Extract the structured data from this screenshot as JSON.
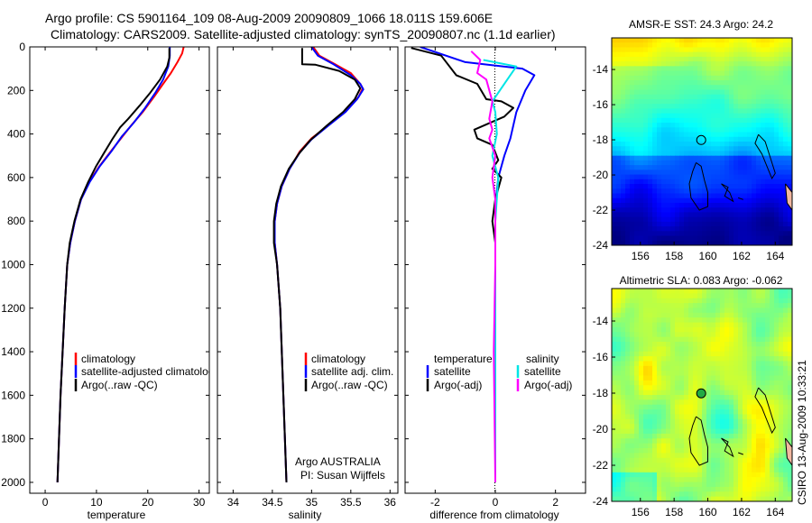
{
  "header": {
    "line1": "Argo profile: CS 5901164_109 08-Aug-2009 20090809_1066 18.011S 159.606E",
    "line2": "Climatology: CARS2009. Satellite-adjusted climatology: synTS_20090807.nc (1.1d earlier)"
  },
  "stamp": "CSIRO 13-Aug-2009 10:33:21",
  "colors": {
    "climatology": "#ff0000",
    "satellite": "#0000ff",
    "argo": "#000000",
    "sal_satellite": "#00e5e5",
    "sal_argo": "#ff00ff"
  },
  "chart_data": [
    {
      "type": "line",
      "id": "temperature",
      "xlabel": "temperature",
      "ylabel": "",
      "xlim": [
        -3,
        32
      ],
      "ylim": [
        2050,
        0
      ],
      "xticks": [
        0,
        10,
        20,
        30
      ],
      "yticks": [
        0,
        200,
        400,
        600,
        800,
        1000,
        1200,
        1400,
        1600,
        1800,
        2000
      ],
      "legend": {
        "entries": [
          "climatology",
          "satellite-adjusted climatology",
          "Argo(..raw -QC)"
        ],
        "placement": "lower-right"
      },
      "series": [
        {
          "name": "climatology",
          "color": "#ff0000",
          "points": [
            [
              27.0,
              0
            ],
            [
              26.7,
              30
            ],
            [
              25.8,
              70
            ],
            [
              24.5,
              120
            ],
            [
              23.0,
              170
            ],
            [
              21.2,
              230
            ],
            [
              19.0,
              300
            ],
            [
              16.8,
              360
            ],
            [
              14.8,
              420
            ],
            [
              12.8,
              480
            ],
            [
              10.5,
              550
            ],
            [
              8.6,
              620
            ],
            [
              7.0,
              700
            ],
            [
              5.8,
              800
            ],
            [
              4.9,
              900
            ],
            [
              4.3,
              1000
            ],
            [
              3.8,
              1200
            ],
            [
              3.4,
              1400
            ],
            [
              3.0,
              1600
            ],
            [
              2.7,
              1800
            ],
            [
              2.4,
              2000
            ]
          ]
        },
        {
          "name": "satellite-adjusted climatology",
          "color": "#0000ff",
          "points": [
            [
              24.3,
              0
            ],
            [
              24.3,
              40
            ],
            [
              24.0,
              90
            ],
            [
              23.0,
              150
            ],
            [
              21.5,
              210
            ],
            [
              19.5,
              280
            ],
            [
              17.2,
              350
            ],
            [
              15.0,
              410
            ],
            [
              12.9,
              480
            ],
            [
              10.6,
              550
            ],
            [
              8.7,
              620
            ],
            [
              7.0,
              700
            ],
            [
              5.8,
              800
            ],
            [
              4.9,
              900
            ],
            [
              4.3,
              1000
            ],
            [
              3.8,
              1200
            ],
            [
              3.4,
              1400
            ],
            [
              3.0,
              1600
            ],
            [
              2.7,
              1800
            ],
            [
              2.4,
              2000
            ]
          ]
        },
        {
          "name": "Argo(..raw -QC)",
          "color": "#000000",
          "points": [
            [
              24.2,
              5
            ],
            [
              24.2,
              50
            ],
            [
              23.8,
              90
            ],
            [
              22.4,
              150
            ],
            [
              20.5,
              210
            ],
            [
              18.4,
              270
            ],
            [
              16.2,
              330
            ],
            [
              14.6,
              370
            ],
            [
              13.2,
              420
            ],
            [
              11.4,
              490
            ],
            [
              9.9,
              550
            ],
            [
              8.4,
              620
            ],
            [
              6.9,
              700
            ],
            [
              5.7,
              800
            ],
            [
              4.8,
              900
            ],
            [
              4.3,
              1000
            ],
            [
              3.8,
              1200
            ],
            [
              3.4,
              1400
            ],
            [
              3.0,
              1600
            ],
            [
              2.7,
              1800
            ],
            [
              2.4,
              2000
            ]
          ]
        }
      ]
    },
    {
      "type": "line",
      "id": "salinity",
      "xlabel": "salinity",
      "ylabel": "",
      "xlim": [
        33.8,
        36.1
      ],
      "ylim": [
        2050,
        0
      ],
      "xticks": [
        34,
        34.5,
        35,
        35.5,
        36
      ],
      "xticklabels": [
        "34",
        "34.5",
        "35",
        "35.5",
        "36"
      ],
      "yticks": [
        0,
        200,
        400,
        600,
        800,
        1000,
        1200,
        1400,
        1600,
        1800,
        2000
      ],
      "legend": {
        "entries": [
          "climatology",
          "satellite adj. clim.",
          "Argo(..raw -QC)"
        ],
        "placement": "lower-right"
      },
      "annotation": [
        "Argo AUSTRALIA",
        "PI: Susan Wijffels"
      ],
      "series": [
        {
          "name": "climatology",
          "color": "#ff0000",
          "points": [
            [
              35.02,
              0
            ],
            [
              35.1,
              40
            ],
            [
              35.3,
              80
            ],
            [
              35.5,
              120
            ],
            [
              35.62,
              170
            ],
            [
              35.65,
              190
            ],
            [
              35.6,
              230
            ],
            [
              35.45,
              290
            ],
            [
              35.25,
              350
            ],
            [
              35.0,
              420
            ],
            [
              34.85,
              480
            ],
            [
              34.72,
              560
            ],
            [
              34.62,
              640
            ],
            [
              34.56,
              720
            ],
            [
              34.53,
              800
            ],
            [
              34.53,
              900
            ],
            [
              34.56,
              1000
            ],
            [
              34.6,
              1200
            ],
            [
              34.63,
              1500
            ],
            [
              34.66,
              1800
            ],
            [
              34.68,
              2000
            ]
          ]
        },
        {
          "name": "satellite adj. clim.",
          "color": "#0000ff",
          "points": [
            [
              35.0,
              0
            ],
            [
              35.08,
              40
            ],
            [
              35.28,
              80
            ],
            [
              35.5,
              130
            ],
            [
              35.62,
              170
            ],
            [
              35.66,
              195
            ],
            [
              35.58,
              240
            ],
            [
              35.43,
              300
            ],
            [
              35.22,
              360
            ],
            [
              35.0,
              425
            ],
            [
              34.85,
              485
            ],
            [
              34.72,
              560
            ],
            [
              34.62,
              640
            ],
            [
              34.56,
              720
            ],
            [
              34.53,
              800
            ],
            [
              34.53,
              900
            ],
            [
              34.56,
              1000
            ],
            [
              34.6,
              1200
            ],
            [
              34.63,
              1500
            ],
            [
              34.66,
              1800
            ],
            [
              34.68,
              2000
            ]
          ]
        },
        {
          "name": "Argo(..raw -QC)",
          "color": "#000000",
          "points": [
            [
              34.88,
              5
            ],
            [
              34.88,
              80
            ],
            [
              35.05,
              82
            ],
            [
              35.35,
              110
            ],
            [
              35.55,
              150
            ],
            [
              35.62,
              190
            ],
            [
              35.55,
              240
            ],
            [
              35.4,
              300
            ],
            [
              35.2,
              360
            ],
            [
              34.98,
              430
            ],
            [
              34.84,
              490
            ],
            [
              34.71,
              560
            ],
            [
              34.61,
              640
            ],
            [
              34.55,
              720
            ],
            [
              34.52,
              800
            ],
            [
              34.52,
              900
            ],
            [
              34.56,
              1000
            ],
            [
              34.6,
              1200
            ],
            [
              34.63,
              1500
            ],
            [
              34.66,
              1800
            ],
            [
              34.68,
              2000
            ]
          ]
        }
      ]
    },
    {
      "type": "line",
      "id": "difference",
      "xlabel": "difference from climatology",
      "ylabel": "",
      "xlim": [
        -3,
        3
      ],
      "ylim": [
        2050,
        0
      ],
      "xticks": [
        -2,
        0,
        2
      ],
      "yticks": [
        0,
        200,
        400,
        600,
        800,
        1000,
        1200,
        1400,
        1600,
        1800,
        2000
      ],
      "legend": {
        "headers": [
          "temperature",
          "salinity"
        ],
        "entries": [
          "satellite",
          "Argo(-adj)",
          "satellite",
          "Argo(-adj)"
        ],
        "placement": "lower-right"
      },
      "series": [
        {
          "name": "temperature satellite",
          "color": "#0000ff",
          "points": [
            [
              -2.5,
              0
            ],
            [
              -1.0,
              70
            ],
            [
              0.9,
              100
            ],
            [
              1.3,
              130
            ],
            [
              1.0,
              200
            ],
            [
              0.7,
              300
            ],
            [
              0.5,
              420
            ],
            [
              0.3,
              500
            ],
            [
              0.1,
              600
            ],
            [
              0.02,
              700
            ],
            [
              0,
              800
            ],
            [
              0,
              2000
            ]
          ]
        },
        {
          "name": "temperature Argo(-adj)",
          "color": "#000000",
          "points": [
            [
              -2.8,
              5
            ],
            [
              -1.8,
              40
            ],
            [
              -1.3,
              130
            ],
            [
              -0.6,
              170
            ],
            [
              -0.3,
              240
            ],
            [
              0.2,
              250
            ],
            [
              0.6,
              280
            ],
            [
              0.3,
              320
            ],
            [
              -0.7,
              380
            ],
            [
              -0.6,
              420
            ],
            [
              -0.1,
              450
            ],
            [
              0.1,
              520
            ],
            [
              -0.1,
              560
            ],
            [
              0.2,
              600
            ],
            [
              0.1,
              650
            ],
            [
              0,
              700
            ],
            [
              -0.1,
              800
            ],
            [
              0,
              900
            ],
            [
              0,
              1000
            ],
            [
              0,
              2000
            ]
          ]
        },
        {
          "name": "salinity satellite",
          "color": "#00e5e5",
          "points": [
            [
              -0.4,
              60
            ],
            [
              0.7,
              90
            ],
            [
              0.4,
              150
            ],
            [
              -0.1,
              250
            ],
            [
              0,
              300
            ],
            [
              0.05,
              400
            ],
            [
              -0.1,
              500
            ],
            [
              0.1,
              600
            ],
            [
              0,
              800
            ],
            [
              0,
              2000
            ]
          ]
        },
        {
          "name": "salinity Argo(-adj)",
          "color": "#ff00ff",
          "points": [
            [
              -0.8,
              20
            ],
            [
              -0.5,
              60
            ],
            [
              -0.6,
              120
            ],
            [
              -0.3,
              150
            ],
            [
              -0.1,
              250
            ],
            [
              -0.2,
              330
            ],
            [
              -0.1,
              380
            ],
            [
              -0.2,
              420
            ],
            [
              0,
              500
            ],
            [
              -0.1,
              600
            ],
            [
              0,
              700
            ],
            [
              0,
              1000
            ],
            [
              -0.05,
              1400
            ],
            [
              0,
              2000
            ]
          ]
        }
      ]
    },
    {
      "type": "heatmap",
      "id": "sst-map",
      "title": "AMSR-E SST: 24.3 Argo: 24.2",
      "xlim": [
        154.3,
        165
      ],
      "ylim": [
        -24,
        -12.2
      ],
      "xticks": [
        156,
        158,
        160,
        162,
        164
      ],
      "yticks": [
        -14,
        -16,
        -18,
        -20,
        -22,
        -24
      ],
      "marker": {
        "lon": 159.606,
        "lat": -18.011
      }
    },
    {
      "type": "heatmap",
      "id": "sla-map",
      "title": "Altimetric SLA: 0.083 Argo: -0.062",
      "xlim": [
        154.3,
        165
      ],
      "ylim": [
        -24,
        -12.2
      ],
      "xticks": [
        156,
        158,
        160,
        162,
        164
      ],
      "yticks": [
        -14,
        -16,
        -18,
        -20,
        -22,
        -24
      ],
      "marker": {
        "lon": 159.606,
        "lat": -18.011
      }
    }
  ]
}
